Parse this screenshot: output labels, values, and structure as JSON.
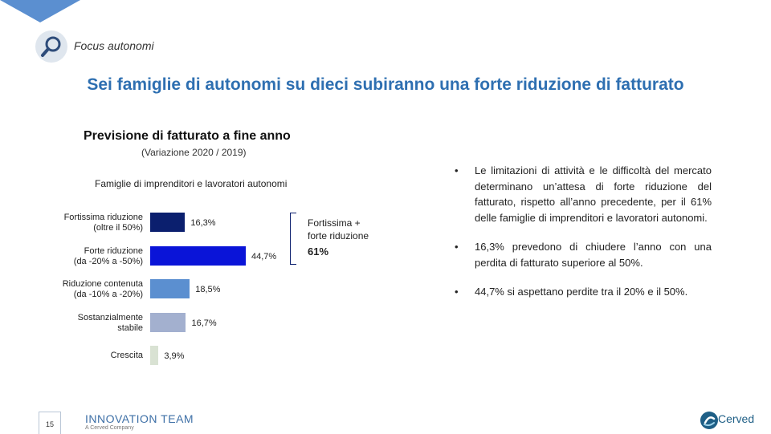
{
  "header": {
    "section_label": "Focus autonomi",
    "headline": "Sei famiglie di autonomi su dieci subiranno una forte riduzione di fatturato"
  },
  "chart_data": {
    "type": "bar",
    "orientation": "horizontal",
    "title": "Previsione di fatturato a fine anno",
    "subtitle": "(Variazione 2020 / 2019)",
    "group_label": "Famiglie di imprenditori e lavoratori autonomi",
    "categories": [
      [
        "Fortissima riduzione",
        "(oltre il 50%)"
      ],
      [
        "Forte riduzione",
        "(da -20% a -50%)"
      ],
      [
        "Riduzione contenuta",
        "(da -10% a -20%)"
      ],
      [
        "Sostanzialmente",
        "stabile"
      ],
      [
        "Crescita"
      ]
    ],
    "values": [
      16.3,
      44.7,
      18.5,
      16.7,
      3.9
    ],
    "value_labels": [
      "16,3%",
      "44,7%",
      "18,5%",
      "16,7%",
      "3,9%"
    ],
    "colors": [
      "#0b1f6e",
      "#0a14d8",
      "#5b8fd0",
      "#a3b0cf",
      "#d9e2d3"
    ],
    "bracket": {
      "label_lines": [
        "Fortissima +",
        "forte riduzione"
      ],
      "value": "61%"
    }
  },
  "bullets": [
    "Le limitazioni di attività e le difficoltà del mercato determinano un’attesa di forte riduzione del fatturato, rispetto all’anno precedente, per il 61% delle famiglie di imprenditori e lavoratori autonomi.",
    "16,3% prevedono di chiudere l’anno con una perdita di fatturato superiore al 50%.",
    "44,7% si aspettano perdite tra il 20% e il 50%."
  ],
  "bullet_symbol": "•",
  "footer": {
    "page_number": "15",
    "brand": "INNOVATION TEAM",
    "brand_sub": "A Cerved Company",
    "company": "Cerved"
  },
  "colors": {
    "accent": "#2e6fb1",
    "corner": "#5b8fd0"
  },
  "icons": {
    "search": "search-icon",
    "logo": "cerved-logo-icon"
  }
}
